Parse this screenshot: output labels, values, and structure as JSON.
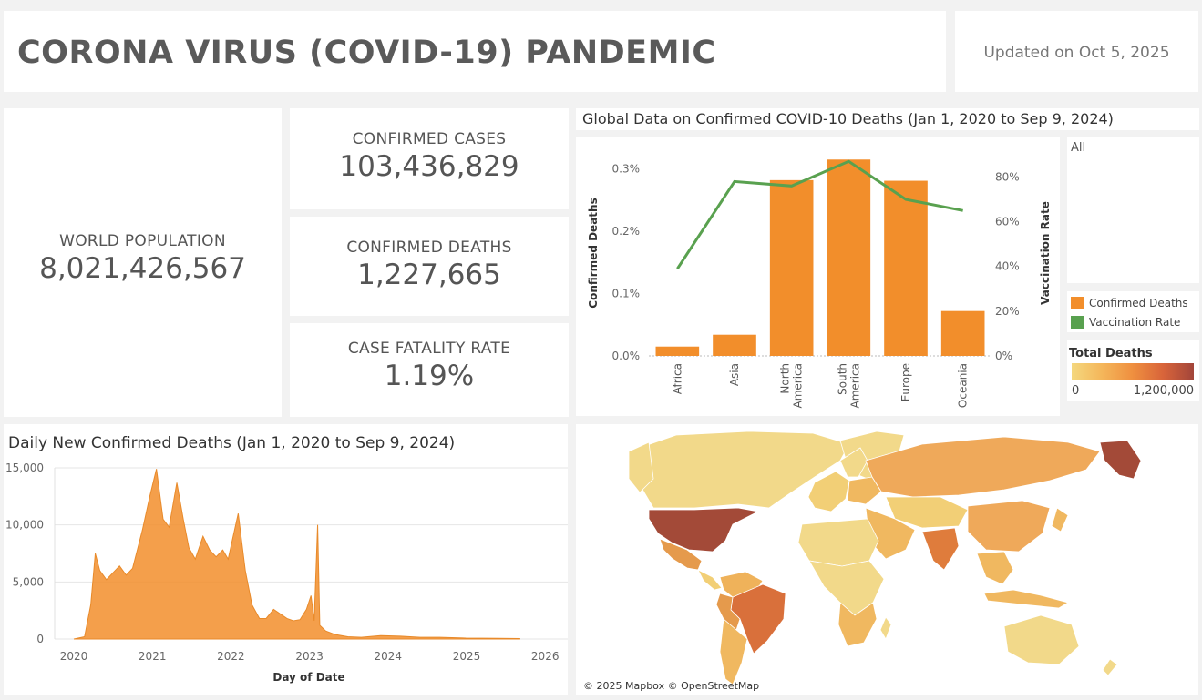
{
  "header": {
    "title": "CORONA VIRUS (COVID-19) PANDEMIC",
    "updated": "Updated on Oct 5, 2025"
  },
  "kpis": {
    "world_population": {
      "label": "WORLD POPULATION",
      "value": "8,021,426,567"
    },
    "confirmed_cases": {
      "label": "CONFIRMED CASES",
      "value": "103,436,829"
    },
    "confirmed_deaths": {
      "label": "CONFIRMED DEATHS",
      "value": "1,227,665"
    },
    "case_fatality_rate": {
      "label": "CASE FATALITY RATE",
      "value": "1.19%"
    }
  },
  "continent_chart_title": "Global Data on Confirmed COVID-10 Deaths (Jan 1, 2020 to Sep 9, 2024)",
  "filter": {
    "value": "All"
  },
  "legend": {
    "items": [
      {
        "label": "Confirmed Deaths",
        "color": "#f28e2b"
      },
      {
        "label": "Vaccination Rate",
        "color": "#59a14f"
      }
    ]
  },
  "color_scale": {
    "title": "Total Deaths",
    "min_label": "0",
    "max_label": "1,200,000"
  },
  "daily_chart_title": "Daily New Confirmed Deaths (Jan 1, 2020 to Sep 9, 2024)",
  "map": {
    "attribution": "© 2025 Mapbox © OpenStreetMap"
  },
  "chart_data": [
    {
      "type": "bar",
      "categories": [
        "Africa",
        "Asia",
        "North America",
        "South America",
        "Europe",
        "Oceania"
      ],
      "series": [
        {
          "name": "Confirmed Deaths",
          "axis": "left",
          "values": [
            0.015,
            0.034,
            0.282,
            0.315,
            0.281,
            0.072
          ],
          "color": "#f28e2b"
        },
        {
          "name": "Vaccination Rate",
          "axis": "right",
          "type": "line",
          "values": [
            0.39,
            0.78,
            0.76,
            0.87,
            0.7,
            0.65
          ],
          "color": "#59a14f"
        }
      ],
      "ylabel": "Confirmed Deaths",
      "y2label": "Vaccination Rate",
      "ylim": [
        0,
        0.33
      ],
      "y2lim": [
        0,
        0.92
      ],
      "yticks": [
        "0.0%",
        "0.1%",
        "0.2%",
        "0.3%"
      ],
      "y2ticks": [
        "0%",
        "20%",
        "40%",
        "60%",
        "80%"
      ],
      "grid": false
    },
    {
      "type": "area",
      "title": "Daily New Confirmed Deaths (Jan 1, 2020 to Sep 9, 2024)",
      "xlabel": "Day of Date",
      "x_ticks": [
        "2020",
        "2021",
        "2022",
        "2023",
        "2024",
        "2025",
        "2026"
      ],
      "y_ticks": [
        "0",
        "5,000",
        "10,000",
        "15,000"
      ],
      "ylim": [
        0,
        15000
      ],
      "color": "#f28e2b",
      "points": [
        {
          "x": "2020-01-01",
          "y": 0
        },
        {
          "x": "2020-02-20",
          "y": 200
        },
        {
          "x": "2020-03-20",
          "y": 3000
        },
        {
          "x": "2020-04-10",
          "y": 7500
        },
        {
          "x": "2020-05-01",
          "y": 6000
        },
        {
          "x": "2020-06-01",
          "y": 5200
        },
        {
          "x": "2020-07-01",
          "y": 5800
        },
        {
          "x": "2020-08-01",
          "y": 6400
        },
        {
          "x": "2020-09-01",
          "y": 5600
        },
        {
          "x": "2020-10-01",
          "y": 6200
        },
        {
          "x": "2020-11-15",
          "y": 9500
        },
        {
          "x": "2020-12-20",
          "y": 12500
        },
        {
          "x": "2021-01-20",
          "y": 14900
        },
        {
          "x": "2021-02-20",
          "y": 10500
        },
        {
          "x": "2021-03-20",
          "y": 9800
        },
        {
          "x": "2021-04-25",
          "y": 13700
        },
        {
          "x": "2021-05-25",
          "y": 10500
        },
        {
          "x": "2021-06-20",
          "y": 8000
        },
        {
          "x": "2021-07-20",
          "y": 7000
        },
        {
          "x": "2021-08-25",
          "y": 9000
        },
        {
          "x": "2021-09-25",
          "y": 7800
        },
        {
          "x": "2021-10-25",
          "y": 7200
        },
        {
          "x": "2021-11-25",
          "y": 7800
        },
        {
          "x": "2021-12-20",
          "y": 7000
        },
        {
          "x": "2022-02-05",
          "y": 11000
        },
        {
          "x": "2022-03-10",
          "y": 6000
        },
        {
          "x": "2022-04-10",
          "y": 3000
        },
        {
          "x": "2022-05-15",
          "y": 1800
        },
        {
          "x": "2022-06-15",
          "y": 1800
        },
        {
          "x": "2022-07-20",
          "y": 2600
        },
        {
          "x": "2022-08-20",
          "y": 2200
        },
        {
          "x": "2022-09-20",
          "y": 1800
        },
        {
          "x": "2022-10-20",
          "y": 1600
        },
        {
          "x": "2022-11-20",
          "y": 1700
        },
        {
          "x": "2022-12-20",
          "y": 2600
        },
        {
          "x": "2023-01-10",
          "y": 3800
        },
        {
          "x": "2023-01-25",
          "y": 1600
        },
        {
          "x": "2023-02-10",
          "y": 10000
        },
        {
          "x": "2023-02-20",
          "y": 1200
        },
        {
          "x": "2023-03-20",
          "y": 700
        },
        {
          "x": "2023-05-01",
          "y": 400
        },
        {
          "x": "2023-07-01",
          "y": 200
        },
        {
          "x": "2023-09-01",
          "y": 150
        },
        {
          "x": "2023-12-01",
          "y": 300
        },
        {
          "x": "2024-03-01",
          "y": 250
        },
        {
          "x": "2024-06-01",
          "y": 150
        },
        {
          "x": "2024-09-01",
          "y": 150
        },
        {
          "x": "2025-01-01",
          "y": 80
        },
        {
          "x": "2025-06-01",
          "y": 60
        },
        {
          "x": "2025-09-09",
          "y": 40
        }
      ]
    }
  ]
}
